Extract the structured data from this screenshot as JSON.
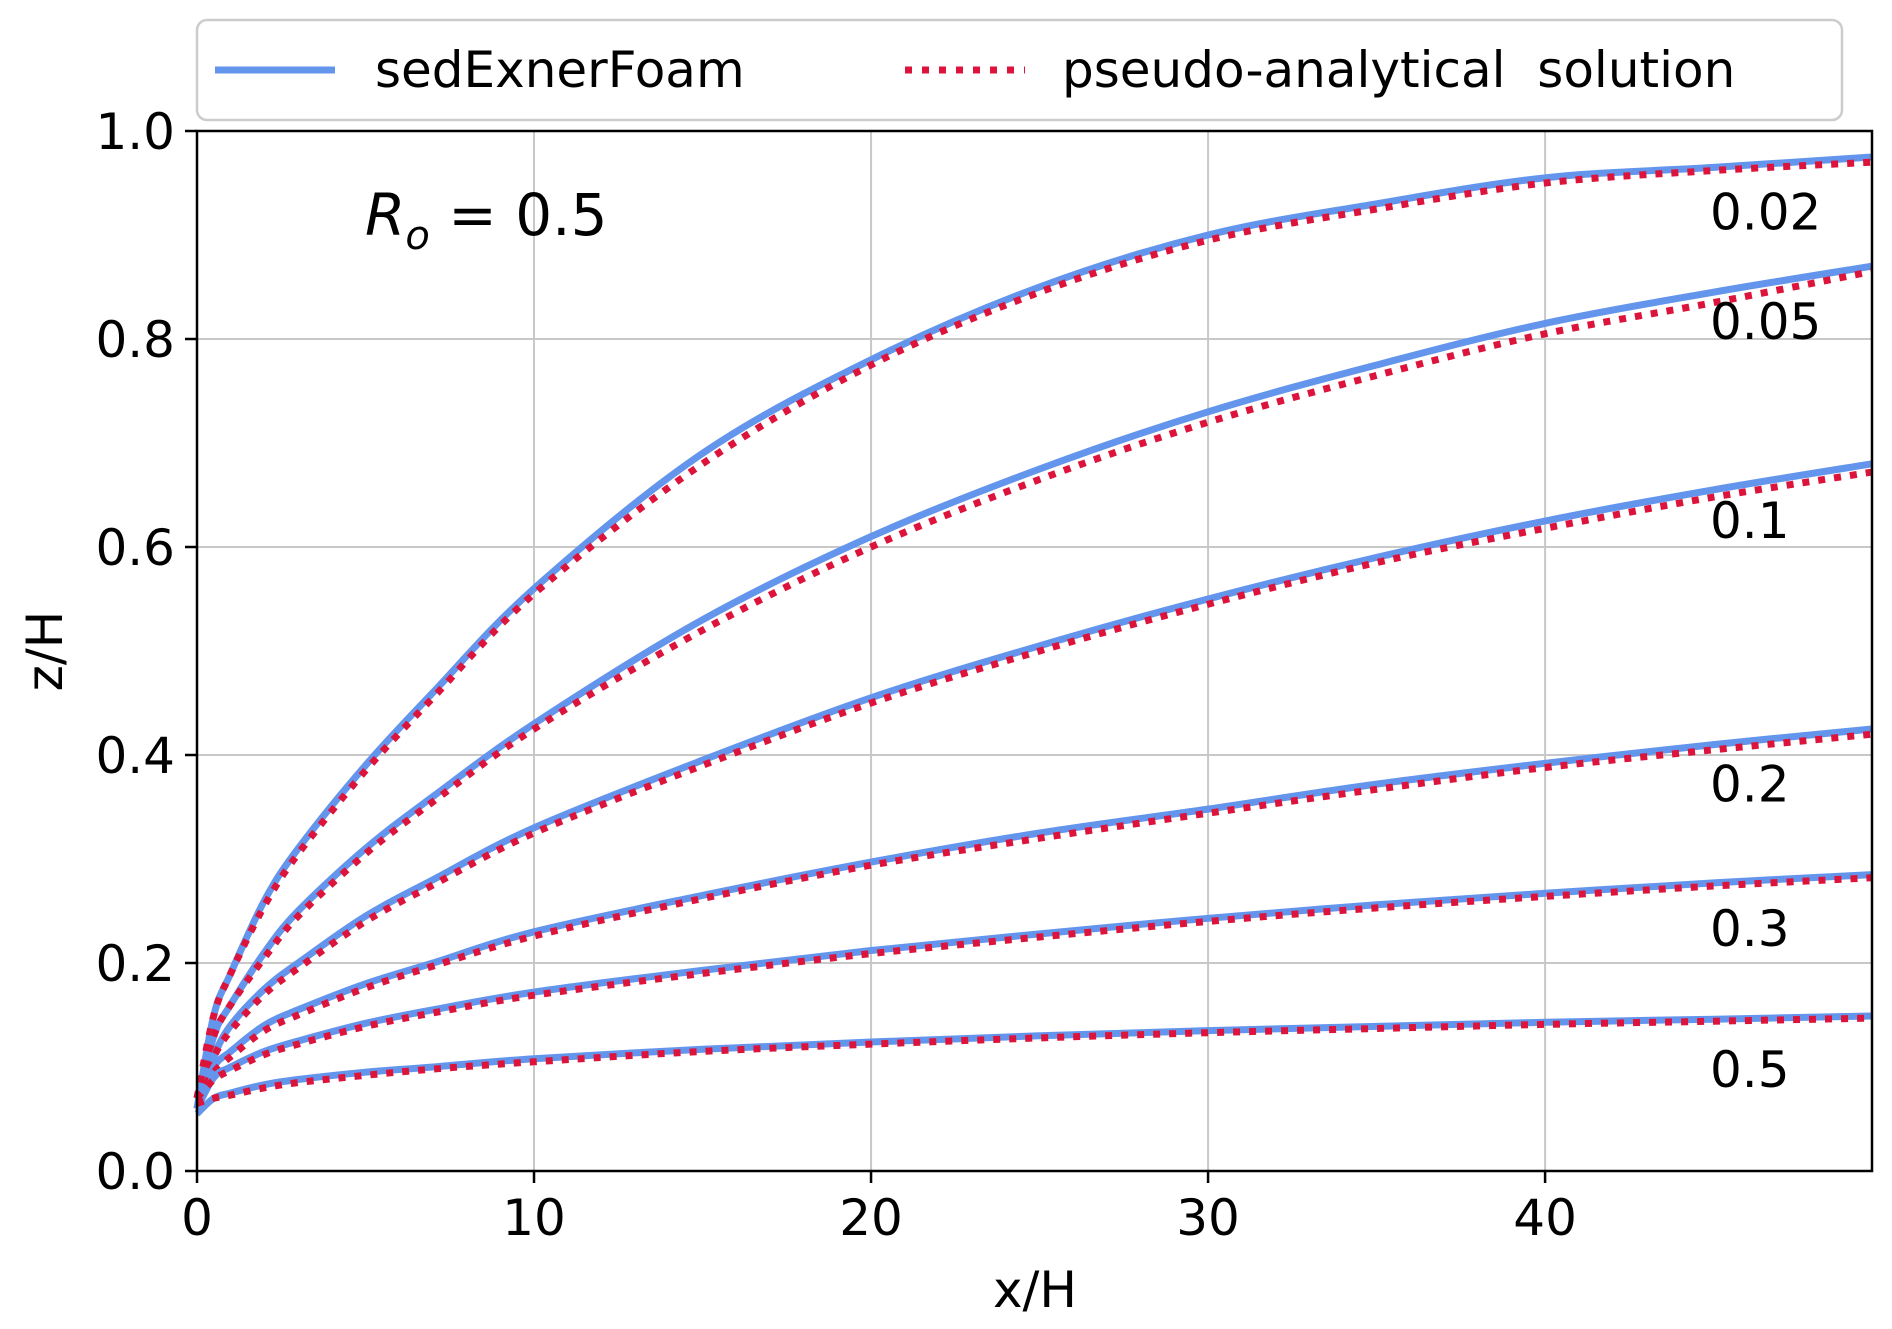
{
  "chart_data": {
    "type": "line",
    "xlabel": "x/H",
    "ylabel": "z/H",
    "xlim": [
      0,
      49.7
    ],
    "ylim": [
      0,
      1.0
    ],
    "xticks": [
      "0",
      "10",
      "20",
      "30",
      "40"
    ],
    "yticks": [
      "0.0",
      "0.2",
      "0.4",
      "0.6",
      "0.8",
      "1.0"
    ],
    "grid": true,
    "legend_position": "top (above plot)",
    "annotation": {
      "symbol": "R",
      "subscript": "o",
      "text": " = 0.5"
    },
    "colors": {
      "sedExnerFoam": "#6495ED",
      "pseudo": "#DC143C"
    },
    "x": [
      0,
      0.5,
      1,
      2,
      3,
      5,
      7,
      10,
      15,
      20,
      25,
      30,
      35,
      40,
      45,
      49.7
    ],
    "series_names": [
      "sedExnerFoam",
      "pseudo-analytical  solution"
    ],
    "curves": [
      {
        "label": "0.02",
        "sedExnerFoam": [
          0.06,
          0.15,
          0.19,
          0.26,
          0.31,
          0.39,
          0.46,
          0.56,
          0.69,
          0.78,
          0.85,
          0.9,
          0.93,
          0.955,
          0.965,
          0.975
        ],
        "pseudo": [
          0.07,
          0.15,
          0.19,
          0.255,
          0.305,
          0.385,
          0.455,
          0.555,
          0.68,
          0.775,
          0.845,
          0.895,
          0.925,
          0.95,
          0.962,
          0.97
        ]
      },
      {
        "label": "0.05",
        "sedExnerFoam": [
          0.06,
          0.13,
          0.16,
          0.21,
          0.25,
          0.31,
          0.36,
          0.43,
          0.53,
          0.61,
          0.675,
          0.73,
          0.775,
          0.815,
          0.845,
          0.87
        ],
        "pseudo": [
          0.07,
          0.13,
          0.16,
          0.205,
          0.245,
          0.305,
          0.355,
          0.425,
          0.52,
          0.6,
          0.665,
          0.72,
          0.765,
          0.805,
          0.835,
          0.865
        ]
      },
      {
        "label": "0.1",
        "sedExnerFoam": [
          0.06,
          0.11,
          0.14,
          0.175,
          0.2,
          0.245,
          0.28,
          0.33,
          0.395,
          0.455,
          0.505,
          0.55,
          0.59,
          0.625,
          0.655,
          0.68
        ],
        "pseudo": [
          0.07,
          0.11,
          0.135,
          0.17,
          0.195,
          0.24,
          0.275,
          0.325,
          0.39,
          0.45,
          0.5,
          0.545,
          0.585,
          0.618,
          0.648,
          0.672
        ]
      },
      {
        "label": "0.2",
        "sedExnerFoam": [
          0.06,
          0.1,
          0.115,
          0.14,
          0.155,
          0.18,
          0.2,
          0.23,
          0.265,
          0.297,
          0.325,
          0.348,
          0.372,
          0.392,
          0.41,
          0.425
        ],
        "pseudo": [
          0.07,
          0.095,
          0.11,
          0.135,
          0.15,
          0.176,
          0.197,
          0.226,
          0.262,
          0.294,
          0.32,
          0.344,
          0.367,
          0.388,
          0.405,
          0.42
        ]
      },
      {
        "label": "0.3",
        "sedExnerFoam": [
          0.06,
          0.09,
          0.1,
          0.115,
          0.125,
          0.142,
          0.155,
          0.172,
          0.193,
          0.212,
          0.228,
          0.243,
          0.256,
          0.267,
          0.277,
          0.285
        ],
        "pseudo": [
          0.07,
          0.088,
          0.097,
          0.112,
          0.122,
          0.139,
          0.152,
          0.169,
          0.19,
          0.209,
          0.225,
          0.24,
          0.253,
          0.264,
          0.274,
          0.282
        ]
      },
      {
        "label": "0.5",
        "sedExnerFoam": [
          0.055,
          0.07,
          0.075,
          0.083,
          0.088,
          0.095,
          0.1,
          0.108,
          0.117,
          0.124,
          0.13,
          0.135,
          0.139,
          0.143,
          0.146,
          0.149
        ],
        "pseudo": [
          0.065,
          0.07,
          0.073,
          0.08,
          0.085,
          0.092,
          0.098,
          0.105,
          0.115,
          0.122,
          0.128,
          0.133,
          0.137,
          0.141,
          0.144,
          0.147
        ]
      }
    ]
  }
}
